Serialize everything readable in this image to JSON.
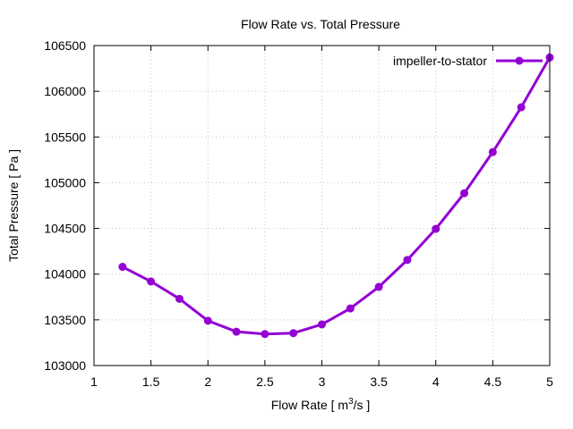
{
  "chart_data": {
    "type": "line",
    "title": "Flow Rate vs. Total Pressure",
    "xlabel_main": "Flow Rate [ m",
    "xlabel_sup": "3",
    "xlabel_tail": "/s ]",
    "ylabel": "Total Pressure [ Pa ]",
    "xlim": [
      1,
      5
    ],
    "ylim": [
      103000,
      106500
    ],
    "xticks": [
      1,
      1.5,
      2,
      2.5,
      3,
      3.5,
      4,
      4.5,
      5
    ],
    "xtick_labels": [
      "1",
      "1.5",
      "2",
      "2.5",
      "3",
      "3.5",
      "4",
      "4.5",
      "5"
    ],
    "yticks": [
      103000,
      103500,
      104000,
      104500,
      105000,
      105500,
      106000,
      106500
    ],
    "ytick_labels": [
      "103000",
      "103500",
      "104000",
      "104500",
      "105000",
      "105500",
      "106000",
      "106500"
    ],
    "grid": true,
    "legend_position": "top-right",
    "series": [
      {
        "name": "impeller-to-stator",
        "color": "#9400d3",
        "x": [
          1.25,
          1.5,
          1.75,
          2.0,
          2.25,
          2.5,
          2.75,
          3.0,
          3.25,
          3.5,
          3.75,
          4.0,
          4.25,
          4.5,
          4.75,
          5.0
        ],
        "y": [
          104080,
          103920,
          103730,
          103490,
          103370,
          103345,
          103355,
          103450,
          103625,
          103860,
          104155,
          104495,
          104885,
          105335,
          105825,
          106370
        ]
      }
    ]
  }
}
